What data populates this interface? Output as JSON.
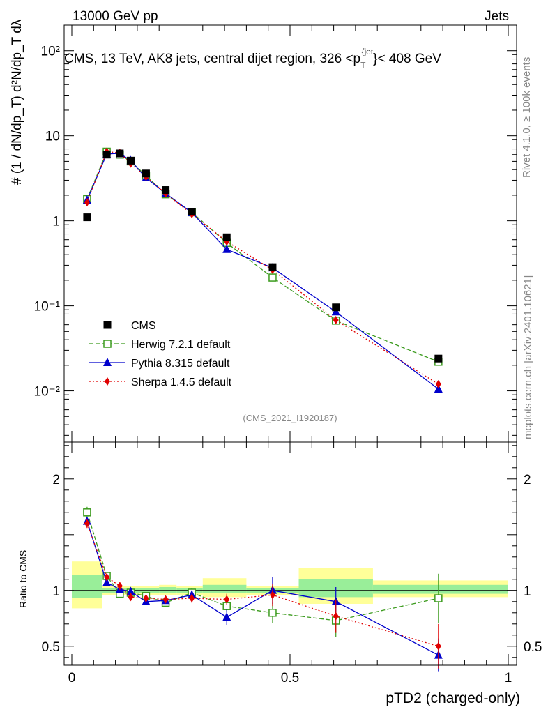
{
  "header": {
    "left": "13000 GeV pp",
    "right": "Jets",
    "title": "CMS, 13 TeV, AK8 jets, central dijet region, 326 <p",
    "title_sub": "T",
    "title_sup": "{jet",
    "title_tail": "}< 408 GeV",
    "rivet": "Rivet 4.1.0, ≥ 100k events",
    "mcplots": "mcplots.cern.ch [arXiv:2401.10621]",
    "analysis": "(CMS_2021_I1920187)",
    "ratio_ylabel": "Ratio to CMS",
    "ylabel": "# (1 / dN/dp_T) d²N/dp_T dλ"
  },
  "chart_data": {
    "type": "line",
    "xlabel": "pTD2 (charged-only)",
    "xlim": [
      0,
      1
    ],
    "x_ticks": [
      "0",
      "0.5",
      "1"
    ],
    "main": {
      "yscale": "log",
      "ylim": [
        0.0025,
        200
      ],
      "y_ticks": [
        "10⁻²",
        "10⁻¹",
        "1",
        "10",
        "10²"
      ]
    },
    "ratio": {
      "ylim": [
        0.33,
        2.33
      ],
      "y_ticks": [
        "0.5",
        "1",
        "2"
      ],
      "bands": [
        {
          "x0": 0.0,
          "x1": 0.07,
          "yellow": [
            0.84,
            1.26
          ],
          "green": [
            0.93,
            1.14
          ]
        },
        {
          "x0": 0.07,
          "x1": 0.2,
          "yellow": [
            0.96,
            1.04
          ],
          "green": [
            0.98,
            1.02
          ]
        },
        {
          "x0": 0.2,
          "x1": 0.24,
          "yellow": [
            0.96,
            1.05
          ],
          "green": [
            0.98,
            1.03
          ]
        },
        {
          "x0": 0.24,
          "x1": 0.3,
          "yellow": [
            0.96,
            1.04
          ],
          "green": [
            0.98,
            1.02
          ]
        },
        {
          "x0": 0.3,
          "x1": 0.4,
          "yellow": [
            0.94,
            1.11
          ],
          "green": [
            0.98,
            1.05
          ]
        },
        {
          "x0": 0.4,
          "x1": 0.52,
          "yellow": [
            0.96,
            1.04
          ],
          "green": [
            0.98,
            1.02
          ]
        },
        {
          "x0": 0.52,
          "x1": 0.69,
          "yellow": [
            0.88,
            1.2
          ],
          "green": [
            0.94,
            1.1
          ]
        },
        {
          "x0": 0.69,
          "x1": 1.0,
          "yellow": [
            0.94,
            1.09
          ],
          "green": [
            0.97,
            1.05
          ]
        }
      ]
    },
    "x": [
      0.035,
      0.08,
      0.11,
      0.135,
      0.17,
      0.215,
      0.275,
      0.355,
      0.46,
      0.605,
      0.84
    ],
    "series": [
      {
        "name": "CMS",
        "color": "#000000",
        "marker": "square-filled",
        "dash": "none",
        "values": [
          1.1,
          6.0,
          6.2,
          5.1,
          3.6,
          2.3,
          1.28,
          0.64,
          0.285,
          0.096,
          0.024
        ],
        "ratio": [
          1,
          1,
          1,
          1,
          1,
          1,
          1,
          1,
          1,
          1,
          1
        ],
        "ratio_err": [
          0,
          0,
          0,
          0,
          0,
          0,
          0,
          0,
          0,
          0,
          0
        ]
      },
      {
        "name": "Herwig 7.2.1 default",
        "color": "#3c9b1e",
        "marker": "square-open",
        "dash": "6,3",
        "values": [
          1.8,
          6.5,
          6.0,
          5.0,
          3.4,
          2.05,
          1.26,
          0.55,
          0.215,
          0.067,
          0.022
        ],
        "ratio": [
          1.7,
          1.13,
          0.97,
          0.98,
          0.95,
          0.89,
          0.98,
          0.86,
          0.8,
          0.73,
          0.93
        ],
        "ratio_err": [
          0.05,
          0.03,
          0.03,
          0.03,
          0.03,
          0.03,
          0.04,
          0.05,
          0.09,
          0.15,
          0.22
        ]
      },
      {
        "name": "Pythia 8.315 default",
        "color": "#0000cc",
        "marker": "triangle",
        "dash": "none",
        "values": [
          1.75,
          6.1,
          6.2,
          5.1,
          3.2,
          2.1,
          1.25,
          0.46,
          0.28,
          0.085,
          0.0105
        ],
        "ratio": [
          1.62,
          1.07,
          1.01,
          0.99,
          0.9,
          0.91,
          0.96,
          0.76,
          1.0,
          0.9,
          0.42
        ],
        "ratio_err": [
          0.04,
          0.03,
          0.03,
          0.03,
          0.03,
          0.03,
          0.04,
          0.07,
          0.12,
          0.13,
          0.15
        ]
      },
      {
        "name": "Sherpa 1.4.5 default",
        "color": "#e00000",
        "marker": "diamond",
        "dash": "2,3",
        "values": [
          1.65,
          6.5,
          6.3,
          4.7,
          3.3,
          2.1,
          1.2,
          0.57,
          0.265,
          0.068,
          0.012
        ],
        "ratio": [
          1.6,
          1.12,
          1.04,
          0.94,
          0.93,
          0.92,
          0.93,
          0.92,
          0.96,
          0.77,
          0.5
        ],
        "ratio_err": [
          0.04,
          0.03,
          0.03,
          0.03,
          0.03,
          0.03,
          0.04,
          0.05,
          0.1,
          0.15,
          0.2
        ]
      }
    ]
  }
}
